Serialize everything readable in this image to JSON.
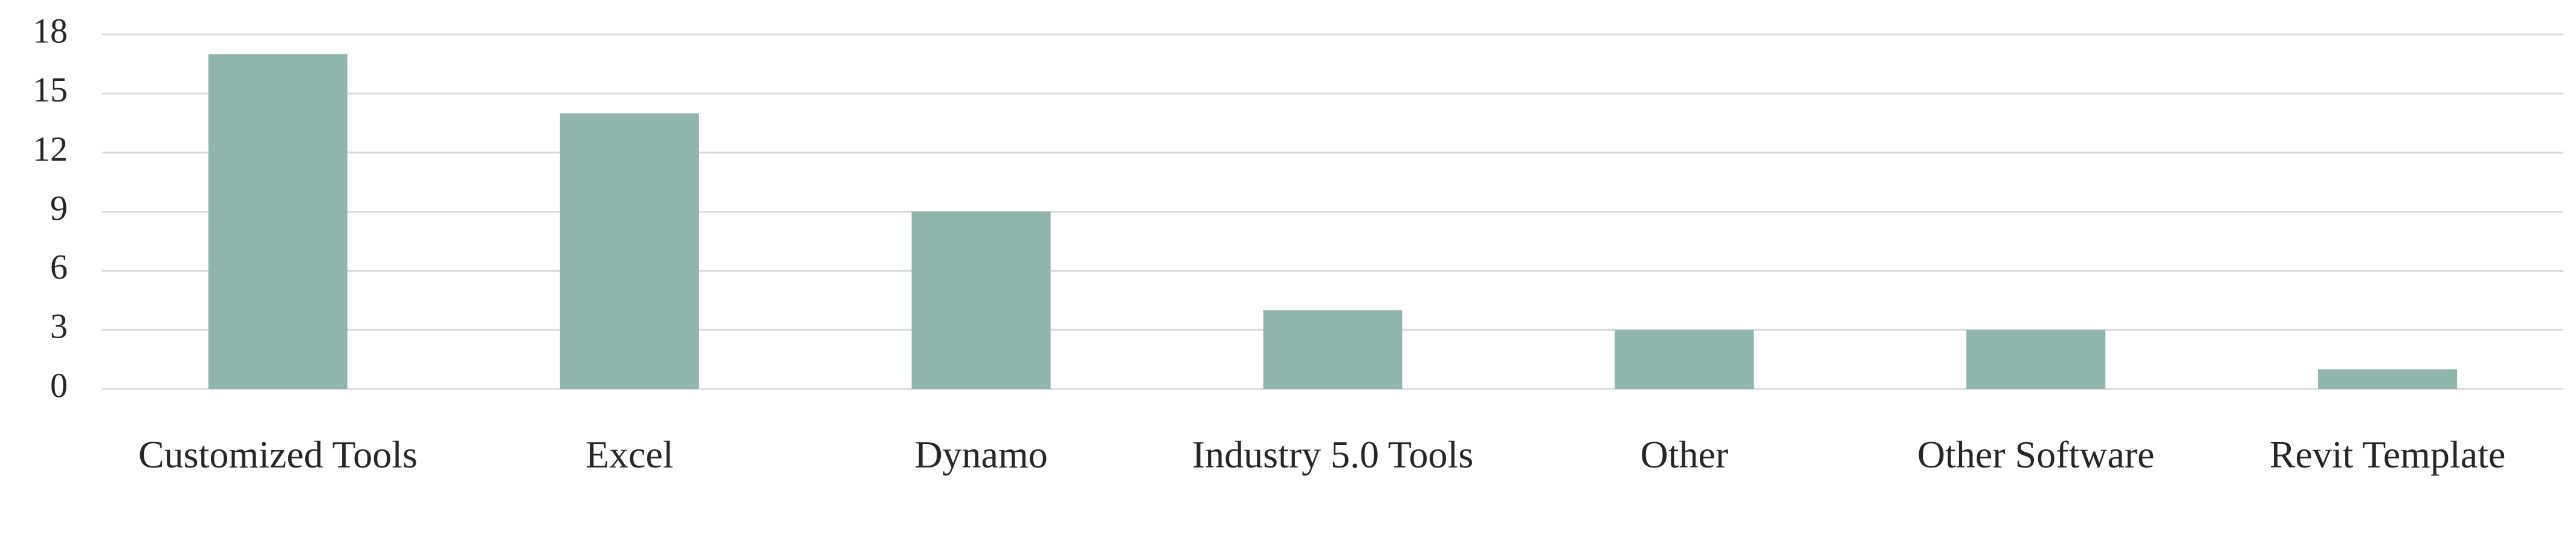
{
  "chart_data": {
    "type": "bar",
    "categories": [
      "Customized Tools",
      "Excel",
      "Dynamo",
      "Industry 5.0 Tools",
      "Other",
      "Other Software",
      "Revit Template"
    ],
    "values": [
      17,
      14,
      9,
      4,
      3,
      3,
      1
    ],
    "color": "#8fb5ad",
    "ylim": [
      0,
      18
    ],
    "yticks": [
      0,
      3,
      6,
      9,
      12,
      15,
      18
    ],
    "grid": true
  }
}
